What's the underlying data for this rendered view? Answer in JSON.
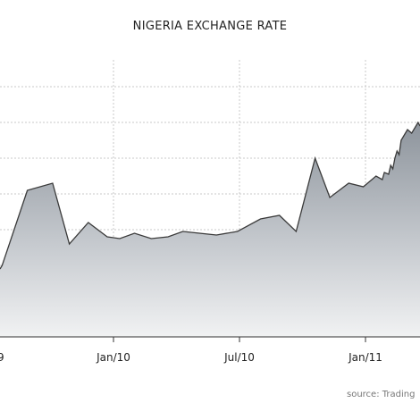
{
  "chart_data": {
    "type": "area",
    "title": "NIGERIA EXCHANGE RATE",
    "xlabel": "",
    "ylabel": "",
    "x_ticks": [
      "Jan/10",
      "Jul/10",
      "Jan/11"
    ],
    "x_tick_positions": [
      6,
      12,
      18
    ],
    "x_partial_tick": "9",
    "y_gridlines": [
      1,
      2,
      3,
      4,
      5,
      6,
      7
    ],
    "ylim": [
      0,
      8
    ],
    "grid": true,
    "source": "source: Trading",
    "series": [
      {
        "x": [
          0.7,
          1.9,
          3.1,
          3.9,
          4.8,
          5.7,
          6.3,
          7.0,
          7.8,
          8.6,
          9.3,
          10.1,
          10.9,
          11.9,
          13.0,
          13.9,
          14.7,
          15.6,
          16.3,
          17.2,
          17.9,
          18.5,
          18.8,
          18.9,
          19.1,
          19.2,
          19.3,
          19.4,
          19.5,
          19.6,
          19.7,
          20.0,
          20.2,
          20.5,
          20.6
        ],
        "y": [
          2.0,
          4.1,
          4.3,
          2.6,
          3.2,
          2.8,
          2.75,
          2.9,
          2.75,
          2.8,
          2.95,
          2.9,
          2.85,
          2.95,
          3.3,
          3.4,
          2.95,
          5.0,
          3.9,
          4.3,
          4.2,
          4.5,
          4.4,
          4.6,
          4.55,
          4.8,
          4.7,
          5.0,
          5.2,
          5.1,
          5.5,
          5.8,
          5.7,
          6.0,
          5.9
        ]
      }
    ]
  }
}
